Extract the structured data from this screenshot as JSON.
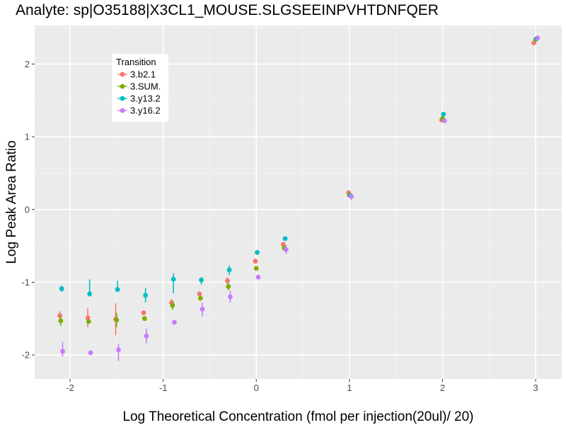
{
  "chart_data": {
    "type": "scatter",
    "title": "Analyte: sp|O35188|X3CL1_MOUSE.SLGSEEINPVHTDNFQER",
    "xlabel": "Log Theoretical Concentration (fmol per injection(20ul)/ 20)",
    "ylabel": "Log Peak Area Ratio",
    "xlim": [
      -2.38,
      3.28
    ],
    "ylim": [
      -2.33,
      2.53
    ],
    "x_ticks": [
      -2,
      -1,
      0,
      1,
      2,
      3
    ],
    "y_ticks": [
      -2,
      -1,
      0,
      1,
      2
    ],
    "x_tick_labels": [
      "-2",
      "-1",
      "0",
      "1",
      "2",
      "3"
    ],
    "y_tick_labels": [
      "-2",
      "-1",
      "0",
      "1",
      "2"
    ],
    "grid": true,
    "legend": {
      "title": "Transition",
      "position": "top-left"
    },
    "series": [
      {
        "name": "3.b2.1",
        "color": "#F8766D",
        "points": [
          {
            "x": -2.11,
            "y": -1.46,
            "lo": -1.52,
            "hi": -1.4
          },
          {
            "x": -1.81,
            "y": -1.49,
            "lo": -1.62,
            "hi": -1.36
          },
          {
            "x": -1.51,
            "y": -1.51,
            "lo": -1.73,
            "hi": -1.29
          },
          {
            "x": -1.21,
            "y": -1.42,
            "lo": -1.44,
            "hi": -1.4
          },
          {
            "x": -0.91,
            "y": -1.28,
            "lo": -1.33,
            "hi": -1.23
          },
          {
            "x": -0.61,
            "y": -1.16,
            "lo": -1.18,
            "hi": -1.14
          },
          {
            "x": -0.31,
            "y": -0.98,
            "lo": -1.03,
            "hi": -0.93
          },
          {
            "x": -0.01,
            "y": -0.71,
            "lo": -0.73,
            "hi": -0.69
          },
          {
            "x": 0.29,
            "y": -0.48,
            "lo": -0.51,
            "hi": -0.45
          },
          {
            "x": 0.99,
            "y": 0.23,
            "lo": 0.21,
            "hi": 0.25
          },
          {
            "x": 1.99,
            "y": 1.23,
            "lo": 1.21,
            "hi": 1.25
          },
          {
            "x": 2.98,
            "y": 2.29,
            "lo": 2.28,
            "hi": 2.3
          }
        ]
      },
      {
        "name": "3.SUM.",
        "color": "#7CAE00",
        "points": [
          {
            "x": -2.1,
            "y": -1.53,
            "lo": -1.6,
            "hi": -1.46
          },
          {
            "x": -1.8,
            "y": -1.54,
            "lo": -1.57,
            "hi": -1.51
          },
          {
            "x": -1.5,
            "y": -1.52,
            "lo": -1.62,
            "hi": -1.42
          },
          {
            "x": -1.2,
            "y": -1.5,
            "lo": -1.52,
            "hi": -1.48
          },
          {
            "x": -0.9,
            "y": -1.32,
            "lo": -1.38,
            "hi": -1.26
          },
          {
            "x": -0.6,
            "y": -1.22,
            "lo": -1.25,
            "hi": -1.19
          },
          {
            "x": -0.3,
            "y": -1.06,
            "lo": -1.11,
            "hi": -1.01
          },
          {
            "x": 0.0,
            "y": -0.81,
            "lo": -0.84,
            "hi": -0.78
          },
          {
            "x": 0.3,
            "y": -0.53,
            "lo": -0.57,
            "hi": -0.49
          },
          {
            "x": 1.0,
            "y": 0.2,
            "lo": 0.18,
            "hi": 0.22
          },
          {
            "x": 2.0,
            "y": 1.25,
            "lo": 1.23,
            "hi": 1.27
          },
          {
            "x": 3.0,
            "y": 2.34,
            "lo": 2.33,
            "hi": 2.35
          }
        ]
      },
      {
        "name": "3.y13.2",
        "color": "#00BFC4",
        "points": [
          {
            "x": -2.09,
            "y": -1.09,
            "lo": -1.13,
            "hi": -1.05
          },
          {
            "x": -1.79,
            "y": -1.16,
            "lo": -1.2,
            "hi": -0.96
          },
          {
            "x": -1.49,
            "y": -1.1,
            "lo": -1.13,
            "hi": -0.98
          },
          {
            "x": -1.19,
            "y": -1.18,
            "lo": -1.28,
            "hi": -1.08
          },
          {
            "x": -0.89,
            "y": -0.96,
            "lo": -1.15,
            "hi": -0.88
          },
          {
            "x": -0.59,
            "y": -0.97,
            "lo": -1.03,
            "hi": -0.93
          },
          {
            "x": -0.29,
            "y": -0.83,
            "lo": -0.9,
            "hi": -0.77
          },
          {
            "x": 0.01,
            "y": -0.59,
            "lo": -0.61,
            "hi": -0.57
          },
          {
            "x": 0.31,
            "y": -0.4,
            "lo": -0.42,
            "hi": -0.38
          },
          {
            "x": 1.01,
            "y": 0.19,
            "lo": 0.17,
            "hi": 0.21
          },
          {
            "x": 2.01,
            "y": 1.31,
            "lo": 1.29,
            "hi": 1.33
          },
          {
            "x": 3.01,
            "y": 2.35,
            "lo": 2.34,
            "hi": 2.36
          }
        ]
      },
      {
        "name": "3.y16.2",
        "color": "#C77CFF",
        "points": [
          {
            "x": -2.08,
            "y": -1.95,
            "lo": -2.02,
            "hi": -1.82
          },
          {
            "x": -1.78,
            "y": -1.97,
            "lo": -2.0,
            "hi": -1.94
          },
          {
            "x": -1.48,
            "y": -1.93,
            "lo": -2.08,
            "hi": -1.85
          },
          {
            "x": -1.18,
            "y": -1.74,
            "lo": -1.84,
            "hi": -1.64
          },
          {
            "x": -0.88,
            "y": -1.55,
            "lo": -1.58,
            "hi": -1.52
          },
          {
            "x": -0.58,
            "y": -1.37,
            "lo": -1.47,
            "hi": -1.28
          },
          {
            "x": -0.28,
            "y": -1.2,
            "lo": -1.28,
            "hi": -1.12
          },
          {
            "x": 0.02,
            "y": -0.93,
            "lo": -0.95,
            "hi": -0.91
          },
          {
            "x": 0.32,
            "y": -0.55,
            "lo": -0.61,
            "hi": -0.49
          },
          {
            "x": 1.02,
            "y": 0.18,
            "lo": 0.13,
            "hi": 0.23
          },
          {
            "x": 2.02,
            "y": 1.22,
            "lo": 1.2,
            "hi": 1.24
          },
          {
            "x": 3.02,
            "y": 2.36,
            "lo": 2.35,
            "hi": 2.37
          }
        ]
      }
    ]
  }
}
